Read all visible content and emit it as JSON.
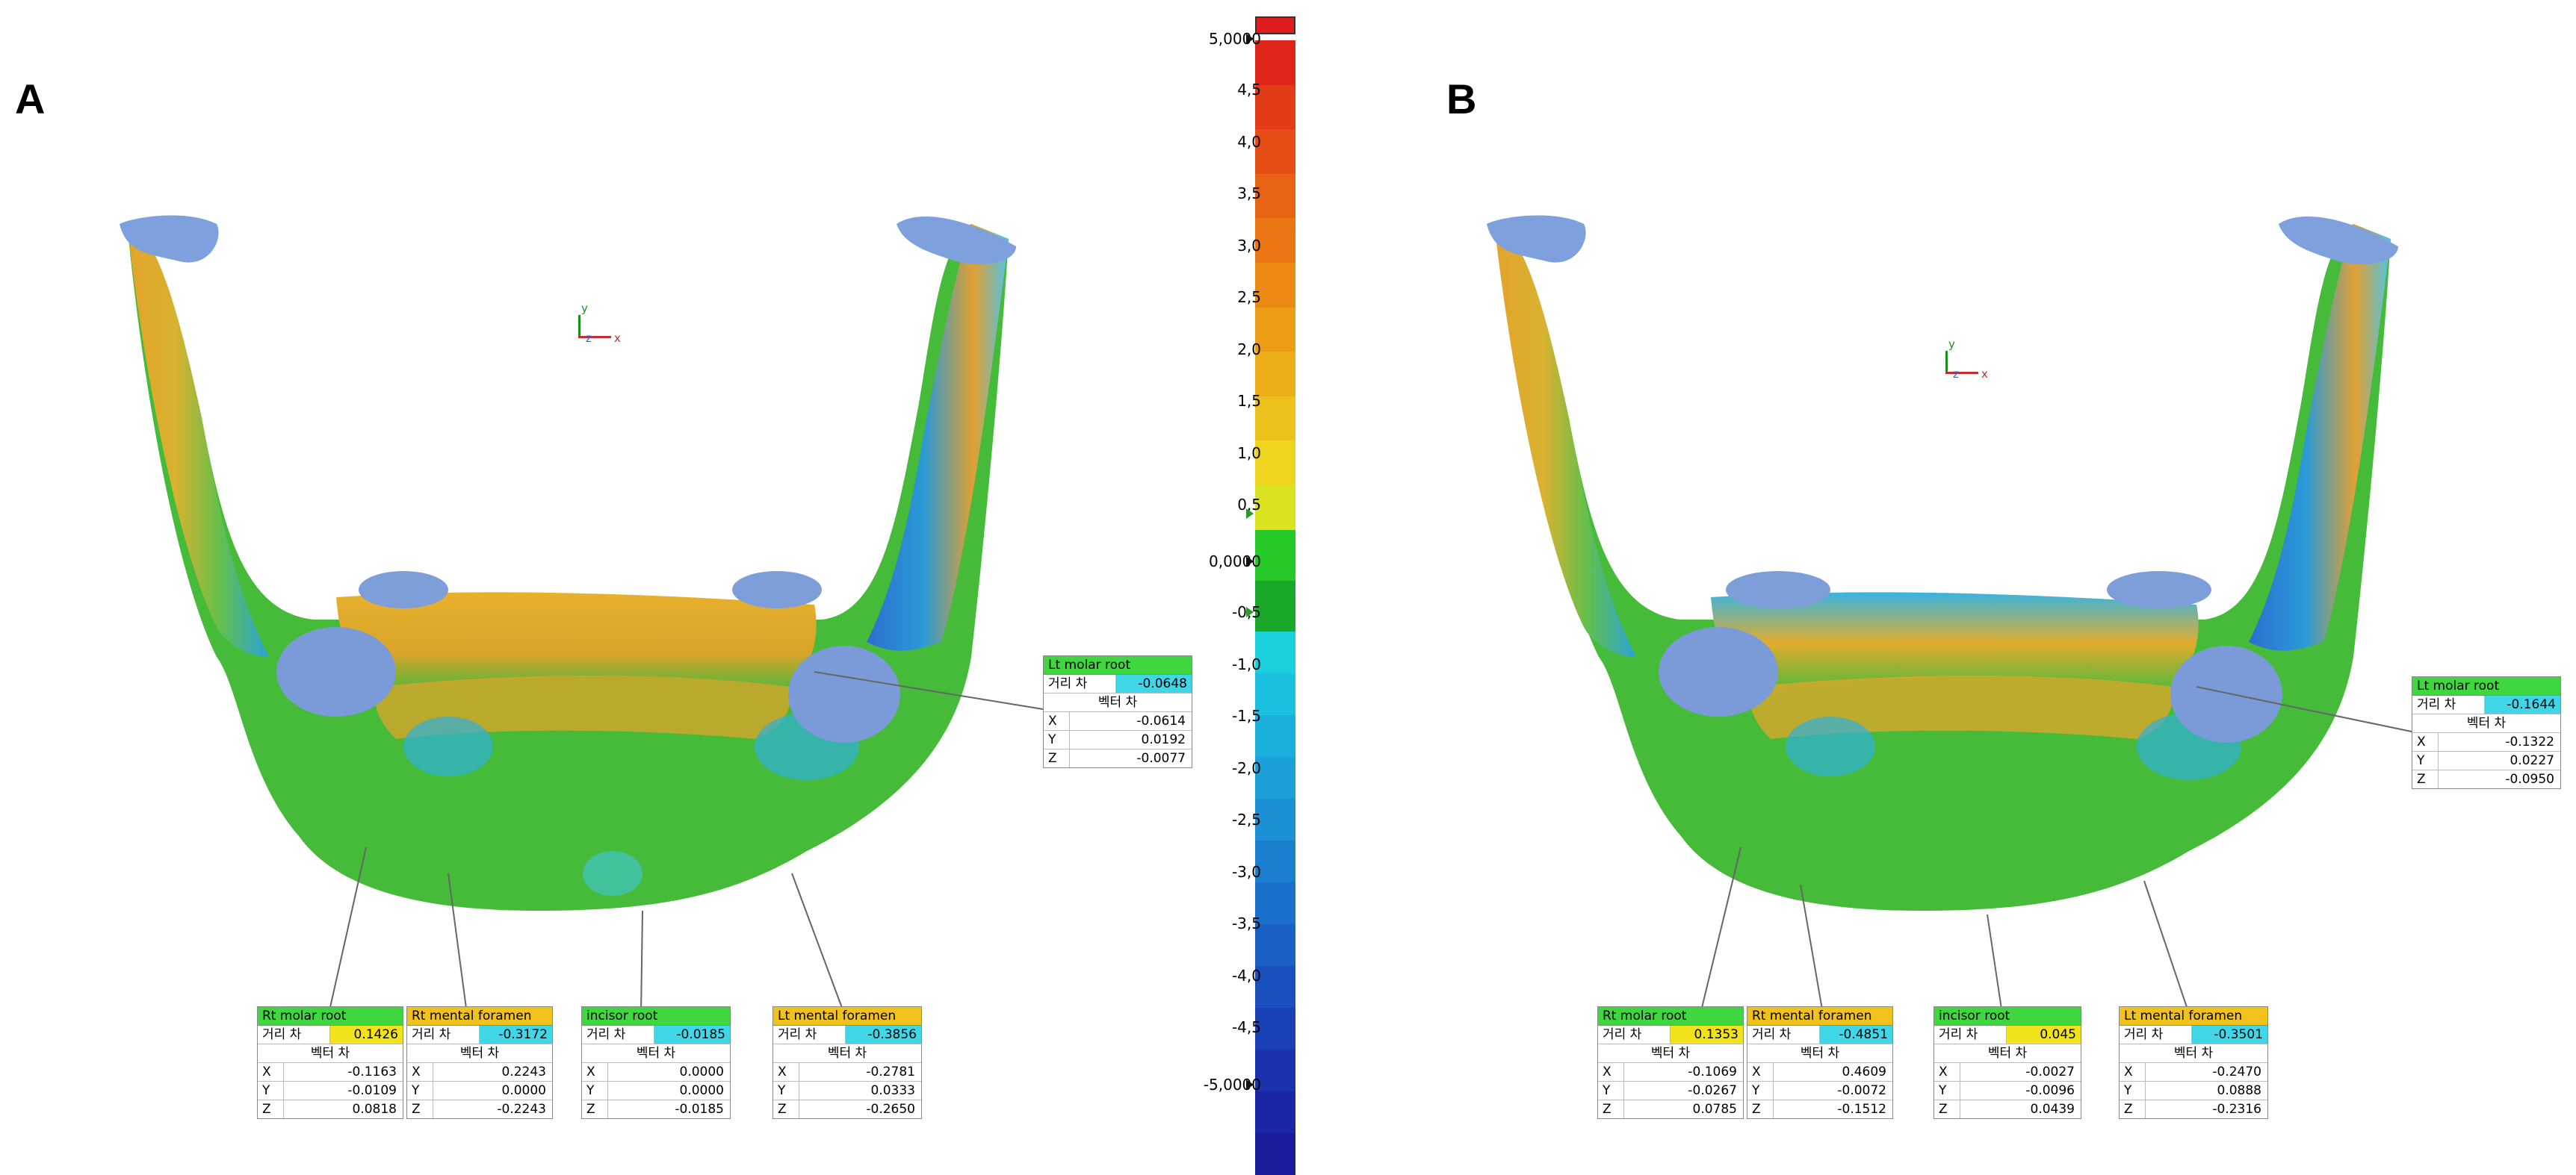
{
  "panels": [
    {
      "label": "A",
      "boxes": [
        {
          "name": "Lt molar root",
          "dist": "-0.0648",
          "header": "#3fd63f",
          "valc": "#3fd6e8",
          "x": "-0.0614",
          "y": "0.0192",
          "z": "-0.0077"
        },
        {
          "name": "Rt molar root",
          "dist": "0.1426",
          "header": "#3fd63f",
          "valc": "#f1e21b",
          "x": "-0.1163",
          "y": "-0.0109",
          "z": "0.0818"
        },
        {
          "name": "Rt mental foramen",
          "dist": "-0.3172",
          "header": "#f1c21b",
          "valc": "#3fd6e8",
          "x": "0.2243",
          "y": "0.0000",
          "z": "-0.2243"
        },
        {
          "name": "incisor root",
          "dist": "-0.0185",
          "header": "#3fd63f",
          "valc": "#3fd6e8",
          "x": "0.0000",
          "y": "0.0000",
          "z": "-0.0185"
        },
        {
          "name": "Lt mental foramen",
          "dist": "-0.3856",
          "header": "#f1c21b",
          "valc": "#3fd6e8",
          "x": "-0.2781",
          "y": "0.0333",
          "z": "-0.2650"
        }
      ]
    },
    {
      "label": "B",
      "boxes": [
        {
          "name": "Lt molar root",
          "dist": "-0.1644",
          "header": "#3fd63f",
          "valc": "#3fd6e8",
          "x": "-0.1322",
          "y": "0.0227",
          "z": "-0.0950"
        },
        {
          "name": "Rt molar root",
          "dist": "0.1353",
          "header": "#3fd63f",
          "valc": "#f1e21b",
          "x": "-0.1069",
          "y": "-0.0267",
          "z": "0.0785"
        },
        {
          "name": "Rt mental foramen",
          "dist": "-0.4851",
          "header": "#f1c21b",
          "valc": "#3fd6e8",
          "x": "0.4609",
          "y": "-0.0072",
          "z": "-0.1512"
        },
        {
          "name": "incisor root",
          "dist": "0.045",
          "header": "#3fd63f",
          "valc": "#f1e21b",
          "x": "-0.0027",
          "y": "-0.0096",
          "z": "0.0439"
        },
        {
          "name": "Lt mental foramen",
          "dist": "-0.3501",
          "header": "#f1c21b",
          "valc": "#3fd6e8",
          "x": "-0.2470",
          "y": "0.0888",
          "z": "-0.2316"
        }
      ]
    }
  ],
  "box_labels": {
    "dist": "거리 차",
    "vector": "벡터 차",
    "x": "X",
    "y": "Y",
    "z": "Z"
  },
  "axis_labels": {
    "y": "y",
    "x": "x",
    "z": "z"
  },
  "scale": {
    "max_label": "5,0000",
    "zero_label": "0,0000",
    "min_label": "-5,0000",
    "ticks": [
      "4,5",
      "4,0",
      "3,5",
      "3,0",
      "2,5",
      "2,0",
      "1,5",
      "1,0",
      "0,5",
      "-0,5",
      "-1,0",
      "-1,5",
      "-2,0",
      "-2,5",
      "-3,0",
      "-3,5",
      "-4,0",
      "-4,5"
    ],
    "colors_high": [
      "#e0261a",
      "#e33a17",
      "#e64e15",
      "#e86213",
      "#ea7512",
      "#eb8913",
      "#ec9c15",
      "#ecae18",
      "#edc11b",
      "#eed41e",
      "#dbe21f"
    ],
    "colors_mid": [
      "#25c928",
      "#1aa829"
    ],
    "colors_low": [
      "#19d0dc",
      "#1ac0de",
      "#1bb0dc",
      "#1ca0d8",
      "#1b90d4",
      "#1a7fcf",
      "#1a6fca",
      "#1a5fc4",
      "#1a4fbe",
      "#1a40b6",
      "#1b32ae",
      "#1a26a6",
      "#1a1c9c"
    ],
    "cap_top": "#e01c1c",
    "cap_bottom": "#1a2fd6"
  }
}
